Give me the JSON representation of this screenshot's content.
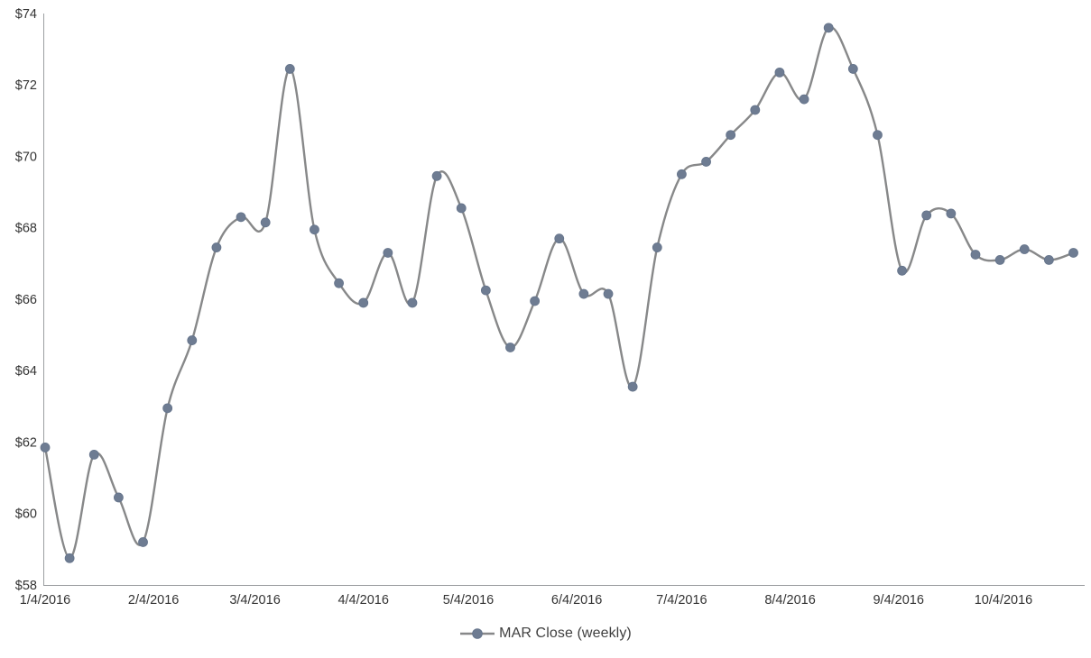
{
  "chart_data": {
    "type": "line",
    "title": "",
    "smooth_line": true,
    "grid": false,
    "marker": "circle",
    "legend_position": "bottom-center",
    "legend_label": "MAR Close (weekly)",
    "ylim": [
      58,
      74
    ],
    "y_step": 2,
    "y_tick_labels": [
      "$58",
      "$60",
      "$62",
      "$64",
      "$66",
      "$68",
      "$70",
      "$72",
      "$74"
    ],
    "x_tick_labels": [
      "1/4/2016",
      "2/4/2016",
      "3/4/2016",
      "4/4/2016",
      "5/4/2016",
      "6/4/2016",
      "7/4/2016",
      "8/4/2016",
      "9/4/2016",
      "10/4/2016"
    ],
    "series": [
      {
        "name": "MAR Close (weekly)",
        "x": [
          "1/4/2016",
          "1/11/2016",
          "1/18/2016",
          "1/25/2016",
          "2/1/2016",
          "2/8/2016",
          "2/15/2016",
          "2/22/2016",
          "2/29/2016",
          "3/7/2016",
          "3/14/2016",
          "3/21/2016",
          "3/28/2016",
          "4/4/2016",
          "4/11/2016",
          "4/18/2016",
          "4/25/2016",
          "5/2/2016",
          "5/9/2016",
          "5/16/2016",
          "5/23/2016",
          "5/30/2016",
          "6/6/2016",
          "6/13/2016",
          "6/20/2016",
          "6/27/2016",
          "7/4/2016",
          "7/11/2016",
          "7/18/2016",
          "7/25/2016",
          "8/1/2016",
          "8/8/2016",
          "8/15/2016",
          "8/22/2016",
          "8/29/2016",
          "9/5/2016",
          "9/12/2016",
          "9/19/2016",
          "9/26/2016",
          "10/3/2016",
          "10/10/2016",
          "10/17/2016",
          "10/24/2016"
        ],
        "values": [
          61.85,
          58.75,
          61.65,
          60.45,
          59.2,
          62.95,
          64.85,
          67.45,
          68.3,
          68.15,
          72.45,
          67.95,
          66.45,
          65.9,
          67.3,
          65.9,
          69.45,
          68.55,
          66.25,
          64.65,
          65.95,
          67.7,
          66.15,
          66.15,
          63.55,
          67.45,
          69.5,
          69.85,
          70.6,
          71.3,
          72.35,
          71.6,
          73.6,
          72.45,
          70.6,
          66.8,
          68.35,
          68.4,
          67.25,
          67.1,
          67.4,
          67.1,
          67.3
        ]
      }
    ],
    "colors": {
      "line": "#878889",
      "marker_fill": "#6e7c92",
      "marker_edge": "#64738a",
      "axis_line": "#9b9ea1",
      "tick_label": "#333333",
      "legend_text": "#3f3f3f",
      "background": "#ffffff"
    }
  }
}
